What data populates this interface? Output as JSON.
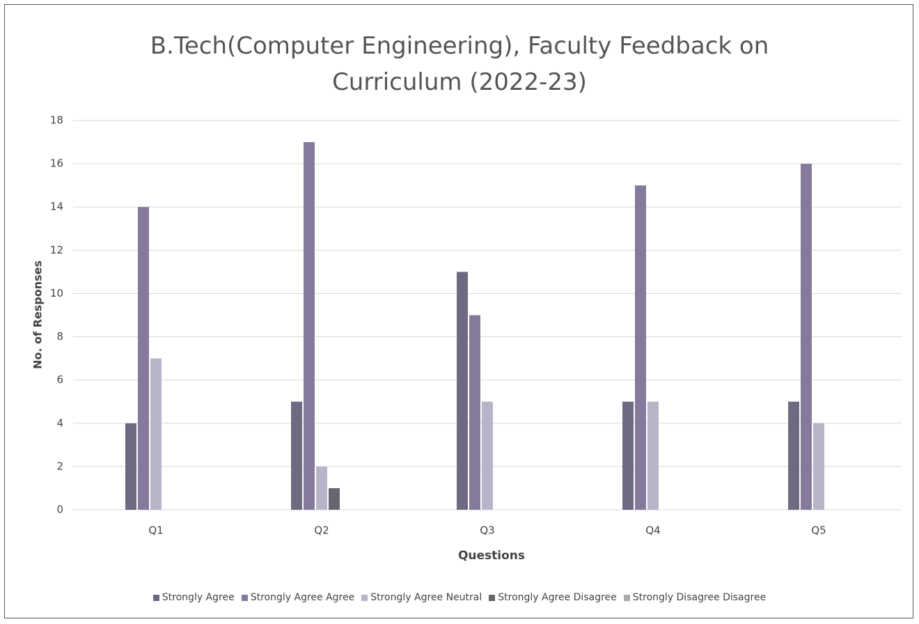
{
  "chart_data": {
    "type": "bar",
    "title": "B.Tech(Computer Engineering), Faculty Feedback on Curriculum (2022-23)",
    "x_label": "Questions",
    "y_label": "No. of Responses",
    "categories": [
      "Q1",
      "Q2",
      "Q3",
      "Q4",
      "Q5"
    ],
    "series": [
      {
        "name": "Strongly Agree",
        "color": "#6f6a82",
        "values": [
          4,
          5,
          11,
          5,
          5
        ]
      },
      {
        "name": "Strongly Agree Agree",
        "color": "#857a9c",
        "values": [
          14,
          17,
          9,
          15,
          16
        ]
      },
      {
        "name": "Strongly Agree Neutral",
        "color": "#b9b5c9",
        "values": [
          7,
          2,
          5,
          5,
          4
        ]
      },
      {
        "name": "Strongly Agree Disagree",
        "color": "#66656e",
        "values": [
          0,
          1,
          0,
          0,
          0
        ]
      },
      {
        "name": "Strongly Disagree Disagree",
        "color": "#a9a9b1",
        "values": [
          0,
          0,
          0,
          0,
          0
        ]
      }
    ],
    "ylim": [
      0,
      18
    ],
    "yticks": [
      0,
      2,
      4,
      6,
      8,
      10,
      12,
      14,
      16,
      18
    ],
    "grid": true,
    "legend": "bottom"
  }
}
